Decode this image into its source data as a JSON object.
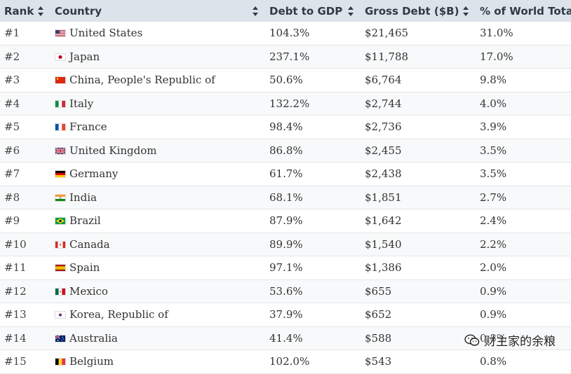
{
  "table": {
    "headers": [
      "Rank",
      "Country",
      "Debt to GDP",
      "Gross Debt ($B)",
      "% of World Total"
    ],
    "rows": [
      {
        "rank": "#1",
        "country": "United States",
        "flag": "flag-us-icon",
        "debt_to_gdp": "104.3%",
        "gross_debt": "$21,465",
        "pct_world": "31.0%"
      },
      {
        "rank": "#2",
        "country": "Japan",
        "flag": "flag-jp-icon",
        "debt_to_gdp": "237.1%",
        "gross_debt": "$11,788",
        "pct_world": "17.0%"
      },
      {
        "rank": "#3",
        "country": "China, People's Republic of",
        "flag": "flag-cn-icon",
        "debt_to_gdp": "50.6%",
        "gross_debt": "$6,764",
        "pct_world": "9.8%"
      },
      {
        "rank": "#4",
        "country": "Italy",
        "flag": "flag-it-icon",
        "debt_to_gdp": "132.2%",
        "gross_debt": "$2,744",
        "pct_world": "4.0%"
      },
      {
        "rank": "#5",
        "country": "France",
        "flag": "flag-fr-icon",
        "debt_to_gdp": "98.4%",
        "gross_debt": "$2,736",
        "pct_world": "3.9%"
      },
      {
        "rank": "#6",
        "country": "United Kingdom",
        "flag": "flag-gb-icon",
        "debt_to_gdp": "86.8%",
        "gross_debt": "$2,455",
        "pct_world": "3.5%"
      },
      {
        "rank": "#7",
        "country": "Germany",
        "flag": "flag-de-icon",
        "debt_to_gdp": "61.7%",
        "gross_debt": "$2,438",
        "pct_world": "3.5%"
      },
      {
        "rank": "#8",
        "country": "India",
        "flag": "flag-in-icon",
        "debt_to_gdp": "68.1%",
        "gross_debt": "$1,851",
        "pct_world": "2.7%"
      },
      {
        "rank": "#9",
        "country": "Brazil",
        "flag": "flag-br-icon",
        "debt_to_gdp": "87.9%",
        "gross_debt": "$1,642",
        "pct_world": "2.4%"
      },
      {
        "rank": "#10",
        "country": "Canada",
        "flag": "flag-ca-icon",
        "debt_to_gdp": "89.9%",
        "gross_debt": "$1,540",
        "pct_world": "2.2%"
      },
      {
        "rank": "#11",
        "country": "Spain",
        "flag": "flag-es-icon",
        "debt_to_gdp": "97.1%",
        "gross_debt": "$1,386",
        "pct_world": "2.0%"
      },
      {
        "rank": "#12",
        "country": "Mexico",
        "flag": "flag-mx-icon",
        "debt_to_gdp": "53.6%",
        "gross_debt": "$655",
        "pct_world": "0.9%"
      },
      {
        "rank": "#13",
        "country": "Korea, Republic of",
        "flag": "flag-kr-icon",
        "debt_to_gdp": "37.9%",
        "gross_debt": "$652",
        "pct_world": "0.9%"
      },
      {
        "rank": "#14",
        "country": "Australia",
        "flag": "flag-au-icon",
        "debt_to_gdp": "41.4%",
        "gross_debt": "$588",
        "pct_world": "0.8%"
      },
      {
        "rank": "#15",
        "country": "Belgium",
        "flag": "flag-be-icon",
        "debt_to_gdp": "102.0%",
        "gross_debt": "$543",
        "pct_world": "0.8%"
      }
    ]
  },
  "watermark": {
    "text": "财主家的余粮",
    "icon": "wechat-icon"
  },
  "colors": {
    "header_bg": "#dde3ea",
    "header_text": "#2e3a47",
    "row_alt_bg": "#f8f9fa"
  }
}
